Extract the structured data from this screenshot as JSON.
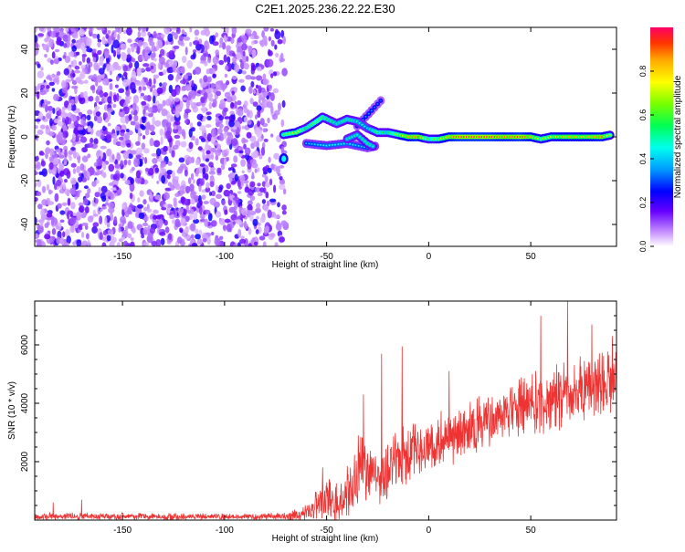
{
  "page_title": "C2E1.2025.236.22.22.E30",
  "chart_data": [
    {
      "type": "heatmap",
      "title": "C2E1.2025.236.22.22.E30",
      "xlabel": "Height of straight line (km)",
      "ylabel": "Frequency (Hz)",
      "xlim": [
        -193,
        92
      ],
      "ylim": [
        -50,
        50
      ],
      "x_ticks": [
        -150,
        -100,
        -50,
        0,
        50
      ],
      "y_ticks": [
        -40,
        -20,
        0,
        20,
        40
      ],
      "noise_region": {
        "x_range": [
          -193,
          -70
        ],
        "y_range": [
          -50,
          50
        ],
        "amplitude_range": [
          0.0,
          0.25
        ]
      },
      "signal_track": [
        {
          "x": -71,
          "y": 1,
          "amp": 0.6
        },
        {
          "x": -65,
          "y": 2,
          "amp": 0.75
        },
        {
          "x": -60,
          "y": 4,
          "amp": 0.55
        },
        {
          "x": -55,
          "y": 7,
          "amp": 0.65
        },
        {
          "x": -52,
          "y": 9,
          "amp": 0.6
        },
        {
          "x": -45,
          "y": 6,
          "amp": 0.5
        },
        {
          "x": -40,
          "y": 8,
          "amp": 0.55
        },
        {
          "x": -35,
          "y": 7,
          "amp": 0.5
        },
        {
          "x": -30,
          "y": 4,
          "amp": 0.45
        },
        {
          "x": -25,
          "y": 2,
          "amp": 0.6
        },
        {
          "x": -20,
          "y": 2,
          "amp": 0.55
        },
        {
          "x": -15,
          "y": 1,
          "amp": 0.7
        },
        {
          "x": -10,
          "y": 0,
          "amp": 0.85
        },
        {
          "x": -5,
          "y": 0,
          "amp": 0.9
        },
        {
          "x": 0,
          "y": -1,
          "amp": 0.6
        },
        {
          "x": 5,
          "y": -1,
          "amp": 0.7
        },
        {
          "x": 10,
          "y": 0,
          "amp": 0.85
        },
        {
          "x": 15,
          "y": 0,
          "amp": 0.95
        },
        {
          "x": 20,
          "y": 0,
          "amp": 0.95
        },
        {
          "x": 25,
          "y": 0,
          "amp": 0.95
        },
        {
          "x": 30,
          "y": 0,
          "amp": 0.95
        },
        {
          "x": 35,
          "y": 0,
          "amp": 0.9
        },
        {
          "x": 40,
          "y": 0,
          "amp": 0.9
        },
        {
          "x": 45,
          "y": 0,
          "amp": 0.95
        },
        {
          "x": 50,
          "y": 0,
          "amp": 0.85
        },
        {
          "x": 55,
          "y": -1,
          "amp": 0.7
        },
        {
          "x": 60,
          "y": 0,
          "amp": 0.75
        },
        {
          "x": 65,
          "y": 0,
          "amp": 0.8
        },
        {
          "x": 70,
          "y": 0,
          "amp": 0.85
        },
        {
          "x": 75,
          "y": 0,
          "amp": 0.8
        },
        {
          "x": 80,
          "y": 0,
          "amp": 0.85
        },
        {
          "x": 85,
          "y": 0,
          "amp": 0.9
        },
        {
          "x": 90,
          "y": 1,
          "amp": 0.6
        }
      ],
      "secondary_tracks": [
        [
          {
            "x": -60,
            "y": -3,
            "amp": 0.4
          },
          {
            "x": -50,
            "y": -4,
            "amp": 0.45
          },
          {
            "x": -40,
            "y": -3,
            "amp": 0.45
          },
          {
            "x": -30,
            "y": -5,
            "amp": 0.4
          },
          {
            "x": -25,
            "y": -4,
            "amp": 0.4
          }
        ],
        [
          {
            "x": -35,
            "y": 5,
            "amp": 0.35
          },
          {
            "x": -28,
            "y": 12,
            "amp": 0.35
          },
          {
            "x": -22,
            "y": 18,
            "amp": 0.3
          }
        ],
        [
          {
            "x": -40,
            "y": -1,
            "amp": 0.5
          },
          {
            "x": -35,
            "y": 1,
            "amp": 0.5
          },
          {
            "x": -30,
            "y": -3,
            "amp": 0.55
          },
          {
            "x": -26,
            "y": -5,
            "amp": 0.5
          }
        ]
      ],
      "isolated_spots": [
        {
          "x": -71,
          "y": -10,
          "amp": 0.45
        }
      ],
      "colorbar": {
        "label": "Normalized spectral amplitude",
        "ticks": [
          "0.0",
          "0.2",
          "0.4",
          "0.6",
          "0.8"
        ],
        "range": [
          0.0,
          1.0
        ]
      }
    },
    {
      "type": "line",
      "xlabel": "Height of straight line (km)",
      "ylabel": "SNR (10 * v/v)",
      "xlim": [
        -193,
        92
      ],
      "ylim": [
        0,
        7500
      ],
      "x_ticks": [
        -150,
        -100,
        -50,
        0,
        50
      ],
      "y_ticks": [
        2000,
        4000,
        6000
      ],
      "color": "#ee3333",
      "series": [
        {
          "x": [
            -193,
            -170,
            -150,
            -120,
            -100,
            -80,
            -70,
            -60,
            -55,
            -50,
            -45,
            -40,
            -35,
            -32,
            -30,
            -25,
            -20,
            -15,
            -10,
            -5,
            0,
            10,
            20,
            30,
            40,
            50,
            60,
            70,
            80,
            92
          ],
          "base": [
            120,
            130,
            120,
            115,
            110,
            120,
            130,
            250,
            500,
            700,
            600,
            900,
            1600,
            2200,
            1500,
            1400,
            1800,
            2000,
            2300,
            2500,
            2600,
            2800,
            3100,
            3400,
            3700,
            4000,
            4200,
            4400,
            4600,
            4800
          ],
          "spread": [
            150,
            150,
            140,
            140,
            130,
            130,
            150,
            300,
            700,
            900,
            800,
            1000,
            1300,
            1400,
            1200,
            1100,
            1200,
            1200,
            1200,
            1100,
            1100,
            1100,
            1100,
            1200,
            1200,
            1300,
            1300,
            1300,
            1300,
            1300
          ]
        }
      ],
      "peaks": [
        {
          "x": -184,
          "y": 600
        },
        {
          "x": -170,
          "y": 700
        },
        {
          "x": -52,
          "y": 1800
        },
        {
          "x": -32,
          "y": 4300
        },
        {
          "x": -23,
          "y": 5700
        },
        {
          "x": -13,
          "y": 5950
        },
        {
          "x": 10,
          "y": 5100
        },
        {
          "x": 55,
          "y": 7000
        },
        {
          "x": 68,
          "y": 7500
        },
        {
          "x": 80,
          "y": 6700
        },
        {
          "x": 90,
          "y": 6300
        }
      ]
    }
  ]
}
